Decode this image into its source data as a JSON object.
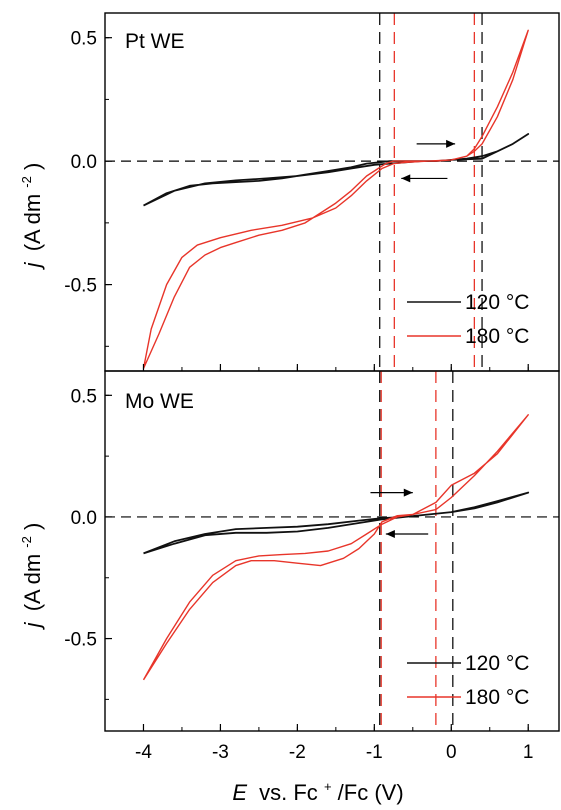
{
  "chart_data": {
    "type": "line",
    "xlabel": {
      "var": "E",
      "rest": "vs. Fc",
      "sup": "+",
      "tail": "/Fc (V)"
    },
    "ylabel": {
      "var": "j",
      "rest": "(A dm",
      "sup": "-2",
      "tail": ")"
    },
    "xlim": [
      -4.5,
      1.4
    ],
    "x_ticks": [
      -4,
      -3,
      -2,
      -1,
      0,
      1
    ],
    "x_tick_labels": [
      "-4",
      "-3",
      "-2",
      "-1",
      "0",
      "1"
    ],
    "series_colors": {
      "120 °C": "#111111",
      "180 °C": "#e8352a"
    },
    "panels": [
      {
        "title": "Pt WE",
        "ylim": [
          -0.85,
          0.6
        ],
        "y_ticks": [
          0.5,
          0.0,
          -0.5
        ],
        "y_tick_labels": [
          "0.5",
          "0.0",
          "-0.5"
        ],
        "legend": [
          "120 °C",
          "180 °C"
        ],
        "legend_position": "bottom-right",
        "arrows": [
          {
            "direction": "right",
            "from": [
              -0.45,
              0.07
            ],
            "to": [
              0.05,
              0.07
            ]
          },
          {
            "direction": "left",
            "from": [
              -0.05,
              -0.07
            ],
            "to": [
              -0.65,
              -0.07
            ]
          }
        ],
        "vlines": [
          {
            "x": -0.93,
            "color": "#111111"
          },
          {
            "x": -0.74,
            "color": "#e8352a"
          },
          {
            "x": 0.3,
            "color": "#e8352a"
          },
          {
            "x": 0.4,
            "color": "#111111"
          }
        ],
        "series": [
          {
            "name": "120 °C",
            "x": [
              -4.0,
              -3.7,
              -3.4,
              -3.1,
              -2.8,
              -2.5,
              -2.2,
              -1.9,
              -1.6,
              -1.3,
              -1.1,
              -0.95,
              -0.8,
              -0.6,
              -0.4,
              -0.2,
              0.0,
              0.2,
              0.4,
              0.6,
              0.8,
              1.0,
              0.8,
              0.6,
              0.4,
              0.2,
              0.0,
              -0.2,
              -0.4,
              -0.6,
              -0.8,
              -1.0,
              -1.3,
              -1.6,
              -2.0,
              -2.4,
              -2.8,
              -3.2,
              -3.6,
              -4.0
            ],
            "y": [
              -0.18,
              -0.13,
              -0.1,
              -0.09,
              -0.085,
              -0.08,
              -0.07,
              -0.055,
              -0.04,
              -0.025,
              -0.01,
              -0.005,
              0.0,
              0.0,
              0.0,
              0.0,
              0.005,
              0.008,
              0.01,
              0.04,
              0.07,
              0.11,
              0.07,
              0.04,
              0.02,
              0.01,
              0.005,
              0.0,
              0.0,
              -0.005,
              -0.01,
              -0.015,
              -0.03,
              -0.045,
              -0.06,
              -0.07,
              -0.078,
              -0.09,
              -0.12,
              -0.18
            ]
          },
          {
            "name": "180 °C",
            "x": [
              -4.0,
              -3.8,
              -3.6,
              -3.4,
              -3.2,
              -3.0,
              -2.8,
              -2.5,
              -2.2,
              -1.9,
              -1.7,
              -1.5,
              -1.3,
              -1.1,
              -0.95,
              -0.85,
              -0.75,
              -0.5,
              -0.2,
              0.0,
              0.2,
              0.3,
              0.4,
              0.6,
              0.8,
              1.0,
              0.8,
              0.6,
              0.4,
              0.3,
              0.2,
              0.0,
              -0.3,
              -0.6,
              -0.75,
              -0.9,
              -1.1,
              -1.3,
              -1.5,
              -1.8,
              -2.2,
              -2.6,
              -3.0,
              -3.3,
              -3.5,
              -3.7,
              -3.9,
              -4.0
            ],
            "y": [
              -0.84,
              -0.7,
              -0.55,
              -0.43,
              -0.38,
              -0.35,
              -0.33,
              -0.3,
              -0.28,
              -0.25,
              -0.21,
              -0.17,
              -0.12,
              -0.06,
              -0.03,
              -0.01,
              0.0,
              0.0,
              0.0,
              0.005,
              0.02,
              0.05,
              0.1,
              0.22,
              0.36,
              0.53,
              0.33,
              0.18,
              0.07,
              0.04,
              0.02,
              0.005,
              0.0,
              -0.005,
              -0.01,
              -0.03,
              -0.08,
              -0.14,
              -0.19,
              -0.23,
              -0.26,
              -0.28,
              -0.31,
              -0.34,
              -0.39,
              -0.5,
              -0.68,
              -0.84
            ]
          }
        ]
      },
      {
        "title": "Mo WE",
        "ylim": [
          -0.88,
          0.6
        ],
        "y_ticks": [
          0.5,
          0.0,
          -0.5
        ],
        "y_tick_labels": [
          "0.5",
          "0.0",
          "-0.5"
        ],
        "legend": [
          "120 °C",
          "180 °C"
        ],
        "legend_position": "bottom-right",
        "arrows": [
          {
            "direction": "right",
            "from": [
              -1.05,
              0.1
            ],
            "to": [
              -0.5,
              0.1
            ]
          },
          {
            "direction": "left",
            "from": [
              -0.3,
              -0.07
            ],
            "to": [
              -0.85,
              -0.07
            ]
          }
        ],
        "vlines": [
          {
            "x": -0.93,
            "color": "#111111"
          },
          {
            "x": -0.93,
            "color": "#e8352a"
          },
          {
            "x": -0.2,
            "color": "#e8352a"
          },
          {
            "x": 0.02,
            "color": "#111111"
          }
        ],
        "series": [
          {
            "name": "120 °C",
            "x": [
              -4.0,
              -3.6,
              -3.2,
              -2.8,
              -2.4,
              -2.0,
              -1.6,
              -1.2,
              -0.9,
              -0.6,
              -0.3,
              0.0,
              0.3,
              0.6,
              1.0,
              0.6,
              0.3,
              0.0,
              -0.3,
              -0.6,
              -0.9,
              -1.2,
              -1.6,
              -2.0,
              -2.4,
              -2.8,
              -3.2,
              -3.6,
              -4.0
            ],
            "y": [
              -0.15,
              -0.11,
              -0.075,
              -0.065,
              -0.065,
              -0.06,
              -0.045,
              -0.025,
              -0.01,
              0.0,
              0.01,
              0.02,
              0.04,
              0.065,
              0.1,
              0.06,
              0.035,
              0.02,
              0.01,
              0.0,
              -0.005,
              -0.015,
              -0.03,
              -0.04,
              -0.045,
              -0.05,
              -0.07,
              -0.1,
              -0.15
            ]
          },
          {
            "name": "180 °C",
            "x": [
              -4.0,
              -3.7,
              -3.4,
              -3.1,
              -2.8,
              -2.6,
              -2.3,
              -2.0,
              -1.7,
              -1.4,
              -1.2,
              -1.0,
              -0.9,
              -0.7,
              -0.5,
              -0.2,
              0.0,
              0.3,
              0.6,
              1.0,
              0.6,
              0.3,
              0.0,
              -0.2,
              -0.5,
              -0.7,
              -0.9,
              -1.1,
              -1.3,
              -1.6,
              -1.9,
              -2.2,
              -2.5,
              -2.8,
              -3.1,
              -3.4,
              -3.7,
              -4.0
            ],
            "y": [
              -0.67,
              -0.52,
              -0.38,
              -0.27,
              -0.2,
              -0.18,
              -0.18,
              -0.19,
              -0.2,
              -0.17,
              -0.13,
              -0.07,
              -0.02,
              0.005,
              0.01,
              0.03,
              0.08,
              0.17,
              0.27,
              0.42,
              0.26,
              0.18,
              0.13,
              0.06,
              0.01,
              0.0,
              -0.03,
              -0.07,
              -0.11,
              -0.14,
              -0.15,
              -0.155,
              -0.16,
              -0.18,
              -0.24,
              -0.35,
              -0.5,
              -0.67
            ]
          }
        ]
      }
    ]
  }
}
